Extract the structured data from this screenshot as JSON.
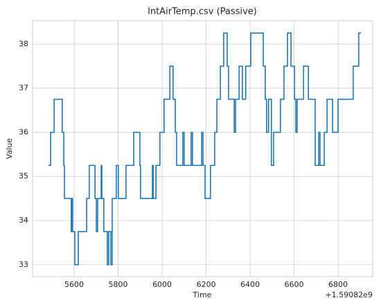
{
  "chart_data": {
    "type": "line",
    "title": "IntAirTemp.csv (Passive)",
    "x_label": "Time",
    "y_label": "Value",
    "x_offset_label": "+1.59082e9",
    "x": [
      5483,
      5493,
      5493,
      5509,
      5509,
      5546,
      5546,
      5553,
      5553,
      5556,
      5556,
      5587,
      5587,
      5590,
      5590,
      5593,
      5593,
      5603,
      5603,
      5619,
      5619,
      5657,
      5657,
      5669,
      5669,
      5695,
      5695,
      5701,
      5701,
      5707,
      5707,
      5723,
      5723,
      5726,
      5726,
      5735,
      5735,
      5751,
      5751,
      5757,
      5757,
      5767,
      5767,
      5773,
      5773,
      5792,
      5792,
      5801,
      5801,
      5836,
      5836,
      5871,
      5871,
      5899,
      5899,
      5902,
      5902,
      5956,
      5956,
      5960,
      5960,
      5972,
      5972,
      5990,
      5990,
      6009,
      6009,
      6035,
      6035,
      6050,
      6050,
      6060,
      6060,
      6066,
      6066,
      6094,
      6094,
      6100,
      6100,
      6132,
      6132,
      6138,
      6138,
      6180,
      6180,
      6186,
      6186,
      6195,
      6195,
      6220,
      6220,
      6239,
      6239,
      6249,
      6249,
      6265,
      6265,
      6280,
      6280,
      6296,
      6296,
      6302,
      6302,
      6328,
      6328,
      6334,
      6334,
      6350,
      6350,
      6365,
      6365,
      6380,
      6380,
      6403,
      6403,
      6460,
      6460,
      6469,
      6469,
      6475,
      6475,
      6484,
      6484,
      6497,
      6497,
      6507,
      6507,
      6538,
      6538,
      6554,
      6554,
      6570,
      6570,
      6586,
      6586,
      6602,
      6602,
      6608,
      6608,
      6614,
      6614,
      6643,
      6643,
      6665,
      6665,
      6696,
      6696,
      6712,
      6712,
      6718,
      6718,
      6737,
      6737,
      6750,
      6750,
      6775,
      6775,
      6800,
      6800,
      6869,
      6869,
      6894,
      6894,
      6904
    ],
    "series": [
      {
        "name": "IntAirTemp",
        "color": "#1f77b4",
        "values": [
          35.25,
          35.25,
          36,
          36,
          36.75,
          36.75,
          36,
          36,
          35.25,
          35.25,
          34.5,
          34.5,
          33.75,
          33.75,
          34.5,
          34.5,
          33.75,
          33.75,
          33,
          33,
          33.75,
          33.75,
          34.5,
          34.5,
          35.25,
          35.25,
          34.5,
          34.5,
          33.75,
          33.75,
          34.5,
          34.5,
          35.25,
          35.25,
          34.5,
          34.5,
          33.75,
          33.75,
          33,
          33,
          33.75,
          33.75,
          33,
          33,
          34.5,
          34.5,
          35.25,
          35.25,
          34.5,
          34.5,
          35.25,
          35.25,
          36,
          36,
          35.25,
          35.25,
          34.5,
          34.5,
          35.25,
          35.25,
          34.5,
          34.5,
          35.25,
          35.25,
          36,
          36,
          36.75,
          36.75,
          37.5,
          37.5,
          36.75,
          36.75,
          36,
          36,
          35.25,
          35.25,
          36,
          36,
          35.25,
          35.25,
          36,
          36,
          35.25,
          35.25,
          36,
          36,
          35.25,
          35.25,
          34.5,
          34.5,
          35.25,
          35.25,
          36,
          36,
          36.75,
          36.75,
          37.5,
          37.5,
          38.25,
          38.25,
          37.5,
          37.5,
          36.75,
          36.75,
          36,
          36,
          36.75,
          36.75,
          37.5,
          37.5,
          36.75,
          36.75,
          37.5,
          37.5,
          38.25,
          38.25,
          37.5,
          37.5,
          36.75,
          36.75,
          36,
          36,
          36.75,
          36.75,
          35.25,
          35.25,
          36,
          36,
          36.75,
          36.75,
          37.5,
          37.5,
          38.25,
          38.25,
          37.5,
          37.5,
          36.75,
          36.75,
          36,
          36,
          36.75,
          36.75,
          37.5,
          37.5,
          36.75,
          36.75,
          35.25,
          35.25,
          36,
          36,
          35.25,
          35.25,
          36,
          36,
          36.75,
          36.75,
          36,
          36,
          36.75,
          36.75,
          37.5,
          37.5,
          38.25,
          38.25
        ]
      }
    ],
    "xlim": [
      5411,
      6957
    ],
    "ylim": [
      32.73,
      38.53
    ],
    "xticks": [
      5600,
      5800,
      6000,
      6200,
      6400,
      6600,
      6800
    ],
    "yticks": [
      33,
      34,
      35,
      36,
      37,
      38
    ],
    "grid": true
  }
}
